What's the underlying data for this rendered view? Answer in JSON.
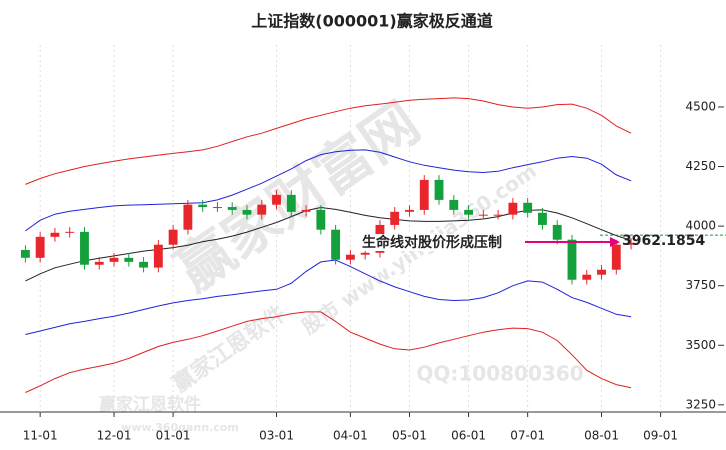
{
  "chart_data": {
    "type": "candlestick",
    "title": "上证指数(000001)赢家极反通道",
    "categories": [
      null,
      "11-01",
      null,
      null,
      null,
      null,
      "12-01",
      null,
      null,
      null,
      "01-01",
      null,
      null,
      null,
      null,
      null,
      null,
      "03-01",
      null,
      null,
      null,
      null,
      "04-01",
      null,
      null,
      null,
      "05-01",
      null,
      null,
      null,
      "06-01",
      null,
      null,
      null,
      "07-01",
      null,
      null,
      null,
      null,
      "08-01",
      null,
      null,
      null,
      "09-01"
    ],
    "open": [
      3900,
      3867,
      3955,
      3972,
      3976,
      3838,
      3850,
      3867,
      3850,
      3826,
      3922,
      3985,
      4090,
      4080,
      4080,
      4068,
      4048,
      4090,
      4131,
      4060,
      4068,
      3985,
      3859,
      3880,
      3888,
      4005,
      4060,
      4068,
      4194,
      4110,
      4068,
      4048,
      4048,
      4048,
      4098,
      4056,
      4005,
      3943,
      3775,
      3796,
      3817,
      3922,
      null,
      null
    ],
    "high": [
      3920,
      3975,
      3992,
      3996,
      3996,
      3870,
      3887,
      3887,
      3870,
      3942,
      4005,
      4110,
      4110,
      4100,
      4100,
      4088,
      4110,
      4151,
      4151,
      4088,
      4088,
      4005,
      3900,
      3908,
      4025,
      4080,
      4088,
      4214,
      4214,
      4130,
      4088,
      4068,
      4068,
      4118,
      4118,
      4076,
      4025,
      3963,
      3816,
      3837,
      3942,
      3950,
      null,
      null
    ],
    "low": [
      3847,
      3847,
      3935,
      3952,
      3818,
      3818,
      3830,
      3830,
      3806,
      3806,
      3902,
      3965,
      4060,
      4060,
      4048,
      4028,
      4028,
      4070,
      4040,
      4040,
      3965,
      3839,
      3839,
      3860,
      3868,
      3985,
      4040,
      4048,
      4090,
      4048,
      4028,
      4028,
      4028,
      4028,
      4036,
      3985,
      3923,
      3755,
      3755,
      3776,
      3797,
      3902,
      null,
      null
    ],
    "close": [
      3867,
      3955,
      3972,
      3976,
      3838,
      3850,
      3867,
      3850,
      3826,
      3922,
      3985,
      4090,
      4080,
      4080,
      4068,
      4048,
      4090,
      4131,
      4060,
      4068,
      3985,
      3859,
      3880,
      3888,
      4005,
      4060,
      4068,
      4194,
      4110,
      4068,
      4048,
      4048,
      4048,
      4098,
      4056,
      4005,
      3943,
      3775,
      3796,
      3817,
      3922,
      3930,
      null,
      null
    ],
    "series": [
      {
        "color": "#e02020",
        "values": [
          4175,
          4200,
          4220,
          4235,
          4250,
          4262,
          4272,
          4282,
          4290,
          4298,
          4305,
          4312,
          4320,
          4335,
          4355,
          4375,
          4390,
          4410,
          4430,
          4450,
          4465,
          4480,
          4495,
          4505,
          4512,
          4520,
          4528,
          4532,
          4535,
          4538,
          4535,
          4525,
          4510,
          4500,
          4495,
          4500,
          4510,
          4512,
          4495,
          4465,
          4420,
          4390,
          null,
          null
        ]
      },
      {
        "color": "#2222dd",
        "values": [
          3980,
          4025,
          4050,
          4062,
          4070,
          4078,
          4085,
          4088,
          4090,
          4092,
          4094,
          4096,
          4098,
          4110,
          4130,
          4155,
          4180,
          4210,
          4240,
          4275,
          4300,
          4312,
          4318,
          4320,
          4310,
          4290,
          4270,
          4255,
          4245,
          4235,
          4228,
          4225,
          4230,
          4245,
          4258,
          4270,
          4285,
          4292,
          4285,
          4260,
          4215,
          4190,
          null,
          null
        ]
      },
      {
        "color": "#222222",
        "values": [
          3770,
          3800,
          3825,
          3840,
          3855,
          3865,
          3875,
          3885,
          3895,
          3902,
          3910,
          3920,
          3935,
          3945,
          3958,
          3975,
          3995,
          4015,
          4040,
          4065,
          4078,
          4070,
          4058,
          4045,
          4035,
          4028,
          4022,
          4020,
          4020,
          4022,
          4025,
          4030,
          4040,
          4055,
          4066,
          4068,
          4055,
          4035,
          4010,
          3985,
          3960,
          3940,
          null,
          null
        ]
      },
      {
        "color": "#2222dd",
        "values": [
          3545,
          3560,
          3575,
          3590,
          3600,
          3612,
          3622,
          3635,
          3650,
          3665,
          3678,
          3688,
          3695,
          3705,
          3712,
          3720,
          3728,
          3735,
          3760,
          3810,
          3850,
          3858,
          3830,
          3800,
          3770,
          3745,
          3725,
          3705,
          3692,
          3688,
          3690,
          3700,
          3720,
          3750,
          3770,
          3765,
          3735,
          3700,
          3680,
          3655,
          3630,
          3620,
          null,
          null
        ]
      },
      {
        "color": "#e02020",
        "values": [
          3302,
          3330,
          3360,
          3385,
          3400,
          3412,
          3425,
          3445,
          3470,
          3495,
          3512,
          3525,
          3540,
          3560,
          3580,
          3600,
          3612,
          3620,
          3632,
          3640,
          3640,
          3600,
          3555,
          3530,
          3505,
          3485,
          3480,
          3492,
          3510,
          3525,
          3540,
          3555,
          3565,
          3572,
          3570,
          3555,
          3520,
          3460,
          3395,
          3360,
          3335,
          3322,
          null,
          null
        ]
      }
    ],
    "up_color": "#e8262b",
    "down_color": "#14a03c",
    "ylim": [
      3220,
      4760
    ],
    "yticks": [
      3250,
      3500,
      3750,
      4000,
      4250,
      4500
    ],
    "annotation": "生命线对股价形成压制",
    "reference_value": 3962.1854,
    "reference_color": "#1a9a3a"
  },
  "watermarks": [
    "赢家财富网",
    "赢家江恩软件",
    "赢家江恩软件",
    "QQ:100800360",
    "www.360gann.com",
    "股市 www.yingjia360.com"
  ]
}
